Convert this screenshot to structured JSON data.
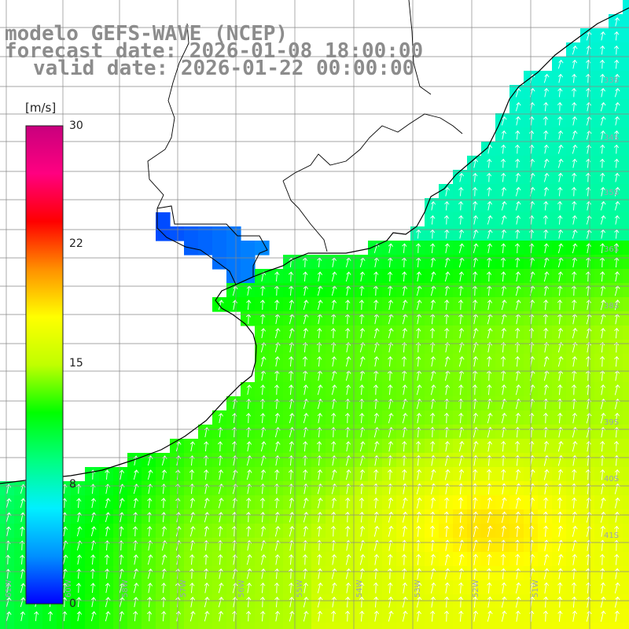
{
  "header": {
    "model_line": "modelo GEFS-WAVE (NCEP)",
    "forecast_line": "forecast date: 2026-01-08 18:00:00",
    "valid_line": "valid date: 2026-01-22 00:00:00"
  },
  "colorbar": {
    "unit": "[m/s]",
    "ticks": [
      "30",
      "22",
      "15",
      "8",
      "0"
    ],
    "tick_values": [
      30,
      22,
      15,
      8,
      0
    ],
    "min": 0,
    "max": 30,
    "colors": [
      "#0000ff",
      "#0090ff",
      "#00f0ff",
      "#00ff80",
      "#00ff00",
      "#c0ff00",
      "#ffff00",
      "#ff9000",
      "#ff0000",
      "#ff0080",
      "#c8007d"
    ]
  },
  "map": {
    "lat_labels": [
      "33S",
      "34S",
      "35S",
      "36S",
      "38S",
      "39S",
      "40S",
      "41S"
    ],
    "lon_labels": [
      "61W",
      "60W",
      "58W",
      "57W",
      "56W",
      "55W",
      "54W",
      "53W",
      "52W",
      "51W"
    ],
    "grid_color": "#888888",
    "land_color": "#ffffff",
    "coast_color": "#000000",
    "arrow_color": "#ffffff",
    "wind_direction": "from south to north (southerly winds)"
  }
}
